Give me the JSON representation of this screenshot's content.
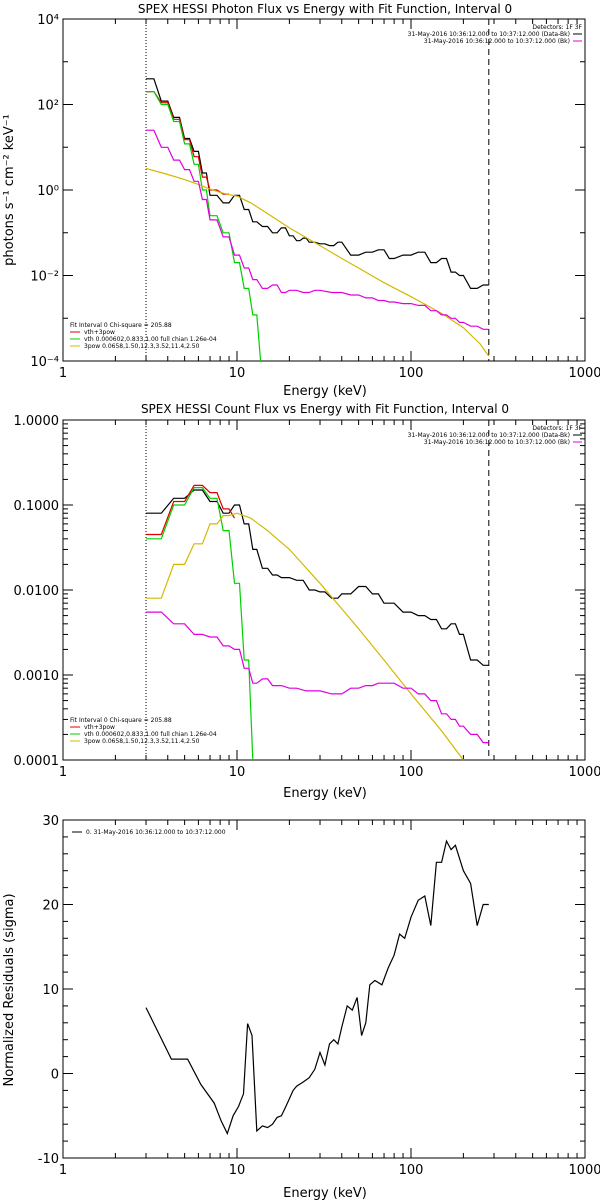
{
  "chart_data": [
    {
      "type": "line",
      "title": "SPEX HESSI Photon Flux vs Energy with Fit Function, Interval 0",
      "xlabel": "Energy (keV)",
      "ylabel": "photons s⁻¹ cm⁻² keV⁻¹",
      "x_scale": "log",
      "y_scale": "log",
      "xlim": [
        1,
        1000
      ],
      "ylim": [
        0.0001,
        10000
      ],
      "x_ticks": [
        1,
        10,
        100,
        1000
      ],
      "x_tick_labels": [
        "1",
        "10",
        "100",
        "1000"
      ],
      "y_ticks": [
        0.0001,
        0.01,
        1,
        100,
        10000
      ],
      "y_tick_labels": [
        "10⁻⁴",
        "10⁻²",
        "10⁰",
        "10²",
        "10⁴"
      ],
      "fit_range_keV": [
        3,
        280
      ],
      "legend_top": {
        "header": "Detectors: 1F 3F",
        "entries": [
          {
            "label": "31-May-2016 10:36:12.000 to 10:37:12.000 (Data-Bk)",
            "color": "#000000"
          },
          {
            "label": "31-May-2016 10:36:12.000 to 10:37:12.000 (Bk)",
            "color": "#e000e0"
          }
        ]
      },
      "legend_bottom": {
        "header": "Fit Interval 0   Chi-square = 205.88",
        "entries": [
          {
            "label": "vth+3pow",
            "color": "#e00000"
          },
          {
            "label": "vth 0.000602,0.833,1.00  full chian 1.26e-04",
            "color": "#00d000"
          },
          {
            "label": "3pow 0.0658,1.50,12.3,3.52,11.4,2.50",
            "color": "#d4b800"
          }
        ]
      },
      "series": [
        {
          "color": "#000000",
          "x": [
            3,
            3.33,
            3.67,
            4,
            4.33,
            4.67,
            5,
            5.33,
            5.67,
            6,
            6.33,
            6.67,
            7,
            7.67,
            8.33,
            9,
            9.67,
            10.33,
            11,
            11.67,
            12.33,
            13,
            14,
            15,
            16,
            17,
            18,
            19,
            20,
            21,
            22,
            23,
            24,
            25,
            26,
            28,
            30,
            32,
            34,
            36,
            38,
            40,
            45,
            50,
            55,
            60,
            65,
            70,
            75,
            80,
            90,
            100,
            110,
            120,
            130,
            140,
            150,
            160,
            170,
            180,
            190,
            200,
            220,
            240,
            260,
            280
          ],
          "y": [
            400,
            400,
            120,
            120,
            50,
            50,
            16,
            16,
            8,
            8,
            2.5,
            2.5,
            0.75,
            0.75,
            0.5,
            0.5,
            0.75,
            0.75,
            0.35,
            0.35,
            0.18,
            0.18,
            0.14,
            0.14,
            0.1,
            0.1,
            0.13,
            0.13,
            0.085,
            0.085,
            0.065,
            0.065,
            0.075,
            0.075,
            0.06,
            0.06,
            0.055,
            0.055,
            0.05,
            0.05,
            0.06,
            0.06,
            0.03,
            0.03,
            0.035,
            0.035,
            0.04,
            0.04,
            0.025,
            0.025,
            0.03,
            0.03,
            0.035,
            0.035,
            0.02,
            0.02,
            0.025,
            0.025,
            0.012,
            0.012,
            0.01,
            0.01,
            0.005,
            0.005,
            0.006,
            0.006
          ]
        },
        {
          "color": "#e00000",
          "x": [
            3,
            3.33,
            3.67,
            4,
            4.33,
            4.67,
            5,
            5.33,
            5.67,
            6,
            6.33,
            6.67,
            7,
            7.67,
            8.33,
            9
          ],
          "y": [
            200,
            200,
            110,
            110,
            45,
            45,
            15,
            15,
            6,
            6,
            2,
            2,
            1,
            1,
            0.8,
            0.8
          ]
        },
        {
          "color": "#00d000",
          "x": [
            3,
            3.33,
            3.67,
            4,
            4.33,
            4.67,
            5,
            5.33,
            5.67,
            6,
            6.33,
            6.67,
            7,
            7.67,
            8.33,
            9,
            9.67,
            10.33,
            11,
            11.67,
            12.33,
            13,
            13.67
          ],
          "y": [
            200,
            200,
            100,
            100,
            40,
            40,
            12,
            12,
            4,
            4,
            1,
            1,
            0.25,
            0.25,
            0.1,
            0.1,
            0.02,
            0.02,
            0.005,
            0.005,
            0.0012,
            0.0012,
            0.0001
          ]
        },
        {
          "color": "#d4b800",
          "x": [
            3,
            4,
            5,
            6,
            7,
            8,
            9,
            10,
            12,
            15,
            20,
            30,
            40,
            50,
            70,
            100,
            150,
            200,
            250,
            280
          ],
          "y": [
            3.2,
            2.3,
            1.75,
            1.35,
            1.05,
            0.88,
            0.78,
            0.72,
            0.5,
            0.28,
            0.13,
            0.05,
            0.025,
            0.015,
            0.0068,
            0.0032,
            0.0013,
            0.0006,
            0.00025,
            0.00013
          ]
        },
        {
          "color": "#e000e0",
          "x": [
            3,
            3.33,
            3.67,
            4,
            4.33,
            4.67,
            5,
            5.33,
            5.67,
            6,
            6.33,
            6.67,
            7,
            7.67,
            8.33,
            9,
            9.67,
            10.33,
            11,
            11.67,
            12.33,
            13,
            14,
            15,
            16,
            17,
            18,
            19,
            20,
            22,
            24,
            26,
            28,
            30,
            35,
            40,
            45,
            50,
            55,
            60,
            65,
            70,
            75,
            80,
            90,
            100,
            110,
            120,
            130,
            140,
            150,
            160,
            170,
            180,
            190,
            200,
            220,
            240,
            260,
            280
          ],
          "y": [
            25,
            25,
            10,
            10,
            5,
            5,
            3,
            3,
            1.6,
            1.6,
            0.6,
            0.6,
            0.2,
            0.2,
            0.08,
            0.08,
            0.03,
            0.03,
            0.015,
            0.015,
            0.008,
            0.008,
            0.005,
            0.005,
            0.006,
            0.006,
            0.004,
            0.004,
            0.0045,
            0.0045,
            0.004,
            0.004,
            0.0045,
            0.0045,
            0.004,
            0.004,
            0.0035,
            0.0035,
            0.003,
            0.003,
            0.0026,
            0.0026,
            0.0024,
            0.0024,
            0.0022,
            0.0022,
            0.002,
            0.002,
            0.0015,
            0.0015,
            0.0012,
            0.0012,
            0.001,
            0.001,
            0.0008,
            0.0008,
            0.00065,
            0.00065,
            0.00055,
            0.00055
          ]
        }
      ]
    },
    {
      "type": "line",
      "title": "SPEX HESSI Count Flux vs Energy with Fit Function, Interval 0",
      "xlabel": "Energy (keV)",
      "ylabel": "",
      "x_scale": "log",
      "y_scale": "log",
      "xlim": [
        1,
        1000
      ],
      "ylim": [
        0.0001,
        1
      ],
      "x_ticks": [
        1,
        10,
        100,
        1000
      ],
      "x_tick_labels": [
        "1",
        "10",
        "100",
        "1000"
      ],
      "y_ticks": [
        0.0001,
        0.001,
        0.01,
        0.1,
        1
      ],
      "y_tick_labels": [
        "0.0001",
        "0.0010",
        "0.0100",
        "0.1000",
        "1.0000"
      ],
      "fit_range_keV": [
        3,
        280
      ],
      "legend_top": {
        "header": "Detectors: 1F 3F",
        "entries": [
          {
            "label": "31-May-2016 10:36:12.000 to 10:37:12.000 (Data-Bk)",
            "color": "#000000"
          },
          {
            "label": "31-May-2016 10:36:12.000 to 10:37:12.000 (Bk)",
            "color": "#e000e0"
          }
        ]
      },
      "legend_bottom": {
        "header": "Fit Interval 0   Chi-square = 205.88",
        "entries": [
          {
            "label": "vth+3pow",
            "color": "#e00000"
          },
          {
            "label": "vth 0.000602,0.833,1.00  full chian 1.26e-04",
            "color": "#00d000"
          },
          {
            "label": "3pow 0.0658,1.50,12.3,3.52,11.4,2.50",
            "color": "#d4b800"
          }
        ]
      },
      "series": [
        {
          "color": "#000000",
          "x": [
            3,
            3.67,
            4.33,
            5,
            5.67,
            6.33,
            7,
            7.67,
            8.33,
            9,
            9.67,
            10.33,
            11,
            11.67,
            12.33,
            13,
            14,
            15,
            16,
            17,
            18,
            20,
            22,
            24,
            26,
            28,
            30,
            32,
            35,
            38,
            40,
            45,
            50,
            55,
            60,
            65,
            70,
            80,
            90,
            100,
            110,
            120,
            130,
            140,
            150,
            160,
            170,
            180,
            190,
            200,
            220,
            240,
            260,
            280
          ],
          "y": [
            0.08,
            0.08,
            0.12,
            0.12,
            0.15,
            0.15,
            0.11,
            0.11,
            0.08,
            0.08,
            0.1,
            0.1,
            0.06,
            0.06,
            0.03,
            0.03,
            0.018,
            0.018,
            0.015,
            0.015,
            0.014,
            0.014,
            0.013,
            0.013,
            0.01,
            0.01,
            0.0095,
            0.0095,
            0.008,
            0.008,
            0.009,
            0.009,
            0.011,
            0.011,
            0.009,
            0.009,
            0.007,
            0.007,
            0.0055,
            0.0055,
            0.005,
            0.005,
            0.0045,
            0.0045,
            0.0035,
            0.0035,
            0.004,
            0.004,
            0.003,
            0.003,
            0.0015,
            0.0015,
            0.0013,
            0.0013
          ]
        },
        {
          "color": "#e00000",
          "x": [
            3,
            3.67,
            4.33,
            5,
            5.67,
            6.33,
            7,
            7.67,
            8.33,
            9,
            9.67
          ],
          "y": [
            0.045,
            0.045,
            0.11,
            0.11,
            0.17,
            0.17,
            0.14,
            0.14,
            0.09,
            0.09,
            0.07
          ]
        },
        {
          "color": "#00d000",
          "x": [
            3,
            3.67,
            4.33,
            5,
            5.67,
            6.33,
            7,
            7.67,
            8.33,
            9,
            9.67,
            10.33,
            11,
            11.67,
            12.33
          ],
          "y": [
            0.04,
            0.04,
            0.1,
            0.1,
            0.16,
            0.16,
            0.12,
            0.12,
            0.05,
            0.05,
            0.012,
            0.012,
            0.0015,
            0.0015,
            0.0001
          ]
        },
        {
          "color": "#d4b800",
          "x": [
            3,
            3.67,
            4.33,
            5,
            5.67,
            6.33,
            7,
            7.67,
            8.33,
            9,
            10,
            12,
            15,
            20,
            30,
            40,
            50,
            70,
            100,
            150,
            200
          ],
          "y": [
            0.008,
            0.008,
            0.02,
            0.02,
            0.035,
            0.035,
            0.06,
            0.06,
            0.075,
            0.075,
            0.08,
            0.07,
            0.05,
            0.03,
            0.012,
            0.006,
            0.0035,
            0.0015,
            0.0006,
            0.00022,
            0.0001
          ]
        },
        {
          "color": "#e000e0",
          "x": [
            3,
            3.67,
            4.33,
            5,
            5.67,
            6.33,
            7,
            7.67,
            8.33,
            9,
            9.67,
            10.33,
            11,
            11.67,
            12.33,
            13,
            14,
            15,
            16,
            18,
            20,
            22,
            25,
            30,
            35,
            40,
            45,
            50,
            55,
            60,
            65,
            70,
            75,
            80,
            90,
            100,
            110,
            120,
            130,
            140,
            150,
            160,
            170,
            180,
            190,
            200,
            220,
            240,
            260,
            280
          ],
          "y": [
            0.0055,
            0.0055,
            0.004,
            0.004,
            0.003,
            0.003,
            0.0028,
            0.0028,
            0.0022,
            0.0022,
            0.002,
            0.002,
            0.0012,
            0.0012,
            0.0008,
            0.0008,
            0.0009,
            0.0009,
            0.00075,
            0.00075,
            0.0007,
            0.0007,
            0.00065,
            0.00065,
            0.0006,
            0.0006,
            0.0007,
            0.0007,
            0.00075,
            0.00075,
            0.0008,
            0.0008,
            0.0008,
            0.0008,
            0.0007,
            0.0007,
            0.0006,
            0.0006,
            0.0005,
            0.0005,
            0.00035,
            0.00035,
            0.0003,
            0.0003,
            0.00025,
            0.00025,
            0.0002,
            0.0002,
            0.00016,
            0.00016
          ]
        }
      ]
    },
    {
      "type": "line",
      "title": "",
      "xlabel": "Energy (keV)",
      "ylabel": "Normalized Residuals (sigma)",
      "x_scale": "log",
      "y_scale": "linear",
      "xlim": [
        1,
        1000
      ],
      "ylim": [
        -10,
        30
      ],
      "x_ticks": [
        1,
        10,
        100,
        1000
      ],
      "x_tick_labels": [
        "1",
        "10",
        "100",
        "1000"
      ],
      "y_ticks": [
        -10,
        0,
        10,
        20,
        30
      ],
      "y_tick_labels": [
        "-10",
        "0",
        "10",
        "20",
        "30"
      ],
      "legend_top": {
        "entries": [
          {
            "label": "0. 31-May-2016 10:36:12.000 to 10:37:12.000",
            "color": "#000000"
          }
        ]
      },
      "series": [
        {
          "color": "#000000",
          "x": [
            3,
            4.2,
            5.2,
            6.2,
            7.4,
            8.1,
            8.8,
            9.5,
            10.2,
            10.9,
            11.5,
            12.2,
            13,
            14,
            15,
            16,
            17,
            18,
            19,
            20,
            21,
            22,
            24,
            26,
            28,
            30,
            32,
            34,
            36,
            38,
            40,
            43,
            46,
            49,
            52,
            55,
            58,
            62,
            68,
            74,
            80,
            86,
            92,
            100,
            110,
            120,
            130,
            140,
            150,
            160,
            170,
            180,
            200,
            220,
            240,
            260,
            280
          ],
          "y": [
            7.8,
            1.7,
            1.7,
            -1.3,
            -3.5,
            -5.6,
            -7.1,
            -5,
            -3.9,
            -2.4,
            5.9,
            4.5,
            -6.8,
            -6.2,
            -6.4,
            -6,
            -5.2,
            -5,
            -4,
            -3,
            -2,
            -1.5,
            -1,
            -0.5,
            0.5,
            2.5,
            1,
            3.5,
            4,
            3.5,
            5.5,
            8,
            7.5,
            9,
            4.5,
            6,
            10.5,
            11,
            10.5,
            12.5,
            14,
            16.5,
            16,
            18.5,
            20.5,
            21,
            17.5,
            25,
            25,
            27.5,
            26.5,
            27,
            24,
            22.5,
            17.5,
            20,
            20
          ]
        }
      ]
    }
  ]
}
